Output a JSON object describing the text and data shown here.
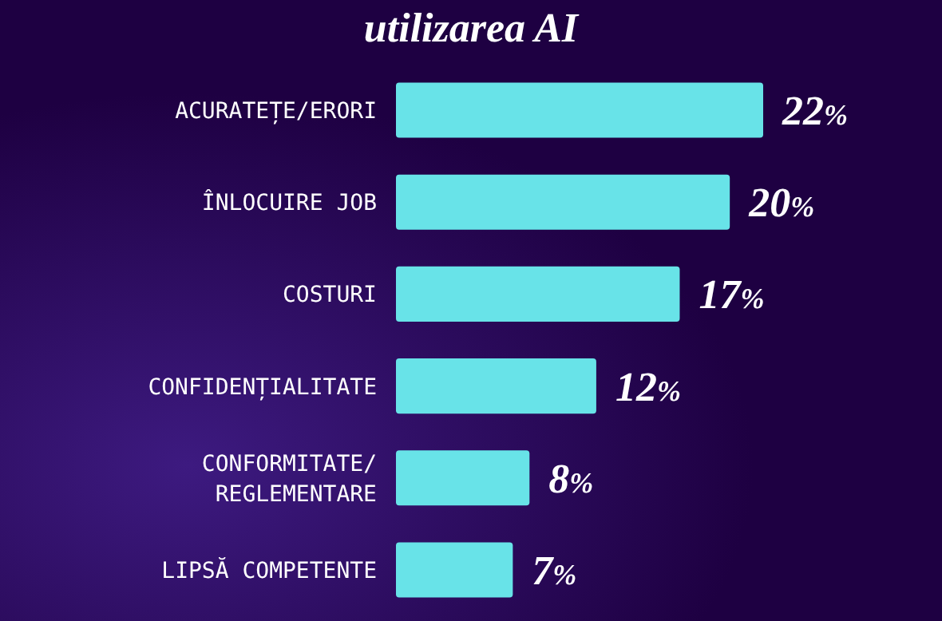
{
  "chart_data": {
    "type": "bar",
    "orientation": "horizontal",
    "relative": false,
    "title": "utilizarea AI",
    "categories": [
      "ACURATEȚE/ERORI",
      "ÎNLOCUIRE JOB",
      "COSTURI",
      "CONFIDENȚIALITATE",
      "CONFORMITATE/REGLEMENTARE",
      "LIPSĂ COMPETENTE"
    ],
    "values": [
      22,
      20,
      17,
      12,
      8,
      7
    ],
    "value_labels": [
      "22%",
      "20%",
      "17%",
      "12%",
      "8%",
      "7%"
    ],
    "color": "#68e3e8",
    "xlim": [
      0,
      22
    ]
  }
}
